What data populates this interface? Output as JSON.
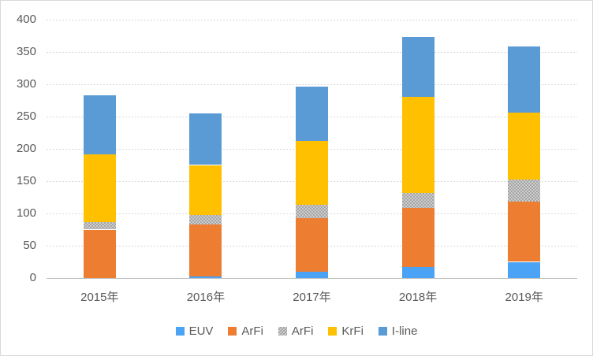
{
  "chart_data": {
    "type": "bar",
    "stacked": true,
    "title": "",
    "categories": [
      "2015年",
      "2016年",
      "2017年",
      "2018年",
      "2019年"
    ],
    "series": [
      {
        "name": "EUV",
        "color": "#4BA3F5",
        "pattern": false,
        "values": [
          0,
          3,
          10,
          17,
          25
        ]
      },
      {
        "name": "ArFi",
        "color": "#ED7D31",
        "pattern": false,
        "values": [
          75,
          80,
          83,
          91,
          93
        ]
      },
      {
        "name": "ArFi",
        "color": "#A5A5A5",
        "pattern": true,
        "values": [
          12,
          14,
          20,
          24,
          34
        ]
      },
      {
        "name": "KrFi",
        "color": "#FFC000",
        "pattern": false,
        "values": [
          104,
          78,
          99,
          148,
          104
        ]
      },
      {
        "name": "I-line",
        "color": "#5B9BD5",
        "pattern": false,
        "values": [
          92,
          80,
          84,
          93,
          102
        ]
      }
    ],
    "totals": [
      283,
      255,
      296,
      373,
      358
    ],
    "xlabel": "",
    "ylabel": "",
    "ylim": [
      0,
      400
    ],
    "yticks": [
      0,
      50,
      100,
      150,
      200,
      250,
      300,
      350,
      400
    ],
    "grid": "horizontal-dotted",
    "legend_position": "bottom"
  },
  "colors": {
    "background": "#FFFFFF",
    "border": "#D9D9D9",
    "gridline": "#D9D9D9",
    "axis_line": "#BFBFBF",
    "axis_text": "#595959",
    "pattern_base": "#CDCDCD",
    "pattern_dot": "#A5A5A5"
  }
}
